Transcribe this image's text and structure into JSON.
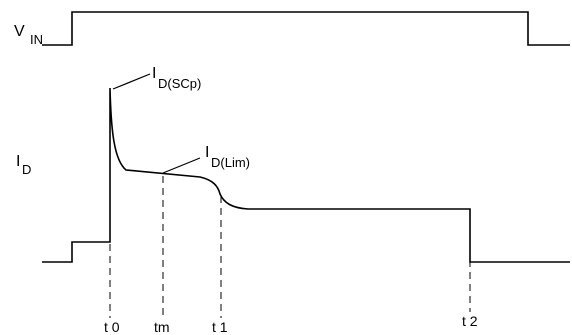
{
  "vin_label": {
    "main": "V",
    "sub": "IN"
  },
  "id_label": {
    "main": "I",
    "sub": "D"
  },
  "annotations": {
    "scp": {
      "main": "I",
      "sub": "D(SCp)"
    },
    "lim": {
      "main": "I",
      "sub": "D(Lim)"
    }
  },
  "time_markers": [
    "t 0",
    "tm",
    "t 1",
    "t 2"
  ],
  "colors": {
    "line": "#000000",
    "background": "#ffffff"
  }
}
